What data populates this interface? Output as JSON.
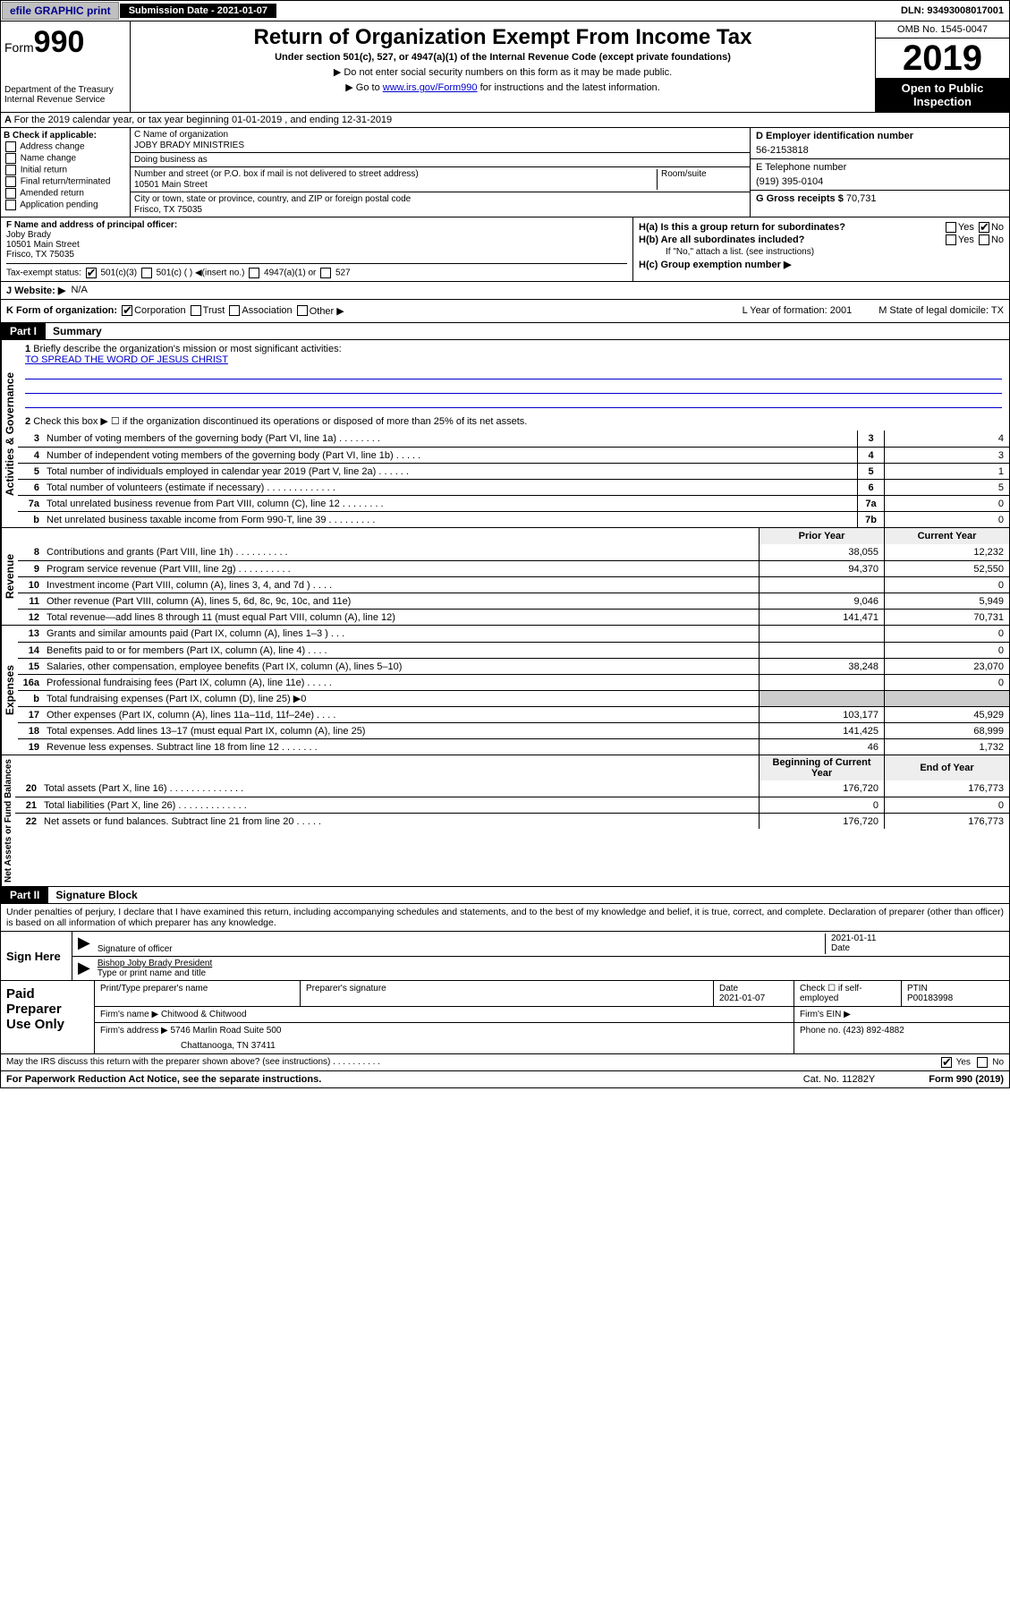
{
  "topbar": {
    "efile": "efile GRAPHIC print",
    "submission_label": "Submission Date - 2021-01-07",
    "dln": "DLN: 93493008017001"
  },
  "header": {
    "form_label": "Form",
    "form_number": "990",
    "dept": "Department of the Treasury\nInternal Revenue Service",
    "title": "Return of Organization Exempt From Income Tax",
    "subtitle": "Under section 501(c), 527, or 4947(a)(1) of the Internal Revenue Code (except private foundations)",
    "note1": "▶ Do not enter social security numbers on this form as it may be made public.",
    "note2_pre": "▶ Go to ",
    "note2_link": "www.irs.gov/Form990",
    "note2_post": " for instructions and the latest information.",
    "omb": "OMB No. 1545-0047",
    "year": "2019",
    "open": "Open to Public Inspection"
  },
  "line_a": "For the 2019 calendar year, or tax year beginning 01-01-2019    , and ending 12-31-2019",
  "box_b": {
    "label": "B Check if applicable:",
    "opts": [
      "Address change",
      "Name change",
      "Initial return",
      "Final return/terminated",
      "Amended return",
      "Application pending"
    ]
  },
  "box_c": {
    "name_lbl": "C Name of organization",
    "name": "JOBY BRADY MINISTRIES",
    "dba_lbl": "Doing business as",
    "addr_lbl": "Number and street (or P.O. box if mail is not delivered to street address)",
    "room_lbl": "Room/suite",
    "addr": "10501 Main Street",
    "city_lbl": "City or town, state or province, country, and ZIP or foreign postal code",
    "city": "Frisco, TX  75035"
  },
  "box_d": {
    "lbl": "D Employer identification number",
    "val": "56-2153818"
  },
  "box_e": {
    "lbl": "E Telephone number",
    "val": "(919) 395-0104"
  },
  "box_g": {
    "lbl": "G Gross receipts $",
    "val": "70,731"
  },
  "box_f": {
    "lbl": "F  Name and address of principal officer:",
    "name": "Joby Brady",
    "addr1": "10501 Main Street",
    "addr2": "Frisco, TX  75035"
  },
  "box_h": {
    "a": "H(a)  Is this a group return for subordinates?",
    "b": "H(b)  Are all subordinates included?",
    "b_note": "If \"No,\" attach a list. (see instructions)",
    "c": "H(c)  Group exemption number ▶"
  },
  "tax_status": {
    "lbl": "Tax-exempt status:",
    "o1": "501(c)(3)",
    "o2": "501(c) (  ) ◀(insert no.)",
    "o3": "4947(a)(1) or",
    "o4": "527"
  },
  "website": {
    "lbl": "J    Website: ▶",
    "val": "N/A"
  },
  "line_k": {
    "lbl": "K Form of organization:",
    "o1": "Corporation",
    "o2": "Trust",
    "o3": "Association",
    "o4": "Other ▶",
    "l": "L Year of formation: 2001",
    "m": "M State of legal domicile: TX"
  },
  "part1": {
    "hdr": "Part I",
    "title": "Summary",
    "q1": "Briefly describe the organization's mission or most significant activities:",
    "mission": "TO SPREAD THE WORD OF JESUS CHRIST",
    "q2": "Check this box ▶ ☐  if the organization discontinued its operations or disposed of more than 25% of its net assets.",
    "vlab1": "Activities & Governance",
    "vlab2": "Revenue",
    "vlab3": "Expenses",
    "vlab4": "Net Assets or Fund Balances",
    "col_prior": "Prior Year",
    "col_curr": "Current Year",
    "col_beg": "Beginning of Current Year",
    "col_end": "End of Year",
    "lines_gov": [
      {
        "n": "3",
        "d": "Number of voting members of the governing body (Part VI, line 1a)   .   .   .   .   .   .   .   .",
        "b": "3",
        "v": "4"
      },
      {
        "n": "4",
        "d": "Number of independent voting members of the governing body (Part VI, line 1b)   .   .   .   .   .",
        "b": "4",
        "v": "3"
      },
      {
        "n": "5",
        "d": "Total number of individuals employed in calendar year 2019 (Part V, line 2a)   .   .   .   .   .   .",
        "b": "5",
        "v": "1"
      },
      {
        "n": "6",
        "d": "Total number of volunteers (estimate if necessary)   .   .   .   .   .   .   .   .   .   .   .   .   .",
        "b": "6",
        "v": "5"
      },
      {
        "n": "7a",
        "d": "Total unrelated business revenue from Part VIII, column (C), line 12   .   .   .   .   .   .   .   .",
        "b": "7a",
        "v": "0"
      },
      {
        "n": "b",
        "d": "Net unrelated business taxable income from Form 990-T, line 39   .   .   .   .   .   .   .   .   .",
        "b": "7b",
        "v": "0"
      }
    ],
    "lines_rev": [
      {
        "n": "8",
        "d": "Contributions and grants (Part VIII, line 1h)   .   .   .   .   .   .   .   .   .   .",
        "p": "38,055",
        "c": "12,232"
      },
      {
        "n": "9",
        "d": "Program service revenue (Part VIII, line 2g)   .   .   .   .   .   .   .   .   .   .",
        "p": "94,370",
        "c": "52,550"
      },
      {
        "n": "10",
        "d": "Investment income (Part VIII, column (A), lines 3, 4, and 7d )   .   .   .   .",
        "p": "",
        "c": "0"
      },
      {
        "n": "11",
        "d": "Other revenue (Part VIII, column (A), lines 5, 6d, 8c, 9c, 10c, and 11e)",
        "p": "9,046",
        "c": "5,949"
      },
      {
        "n": "12",
        "d": "Total revenue—add lines 8 through 11 (must equal Part VIII, column (A), line 12)",
        "p": "141,471",
        "c": "70,731"
      }
    ],
    "lines_exp": [
      {
        "n": "13",
        "d": "Grants and similar amounts paid (Part IX, column (A), lines 1–3 )   .   .   .",
        "p": "",
        "c": "0"
      },
      {
        "n": "14",
        "d": "Benefits paid to or for members (Part IX, column (A), line 4)   .   .   .   .",
        "p": "",
        "c": "0"
      },
      {
        "n": "15",
        "d": "Salaries, other compensation, employee benefits (Part IX, column (A), lines 5–10)",
        "p": "38,248",
        "c": "23,070"
      },
      {
        "n": "16a",
        "d": "Professional fundraising fees (Part IX, column (A), line 11e)   .   .   .   .   .",
        "p": "",
        "c": "0"
      },
      {
        "n": "b",
        "d": "Total fundraising expenses (Part IX, column (D), line 25) ▶0",
        "p": "shade",
        "c": "shade"
      },
      {
        "n": "17",
        "d": "Other expenses (Part IX, column (A), lines 11a–11d, 11f–24e)   .   .   .   .",
        "p": "103,177",
        "c": "45,929"
      },
      {
        "n": "18",
        "d": "Total expenses. Add lines 13–17 (must equal Part IX, column (A), line 25)",
        "p": "141,425",
        "c": "68,999"
      },
      {
        "n": "19",
        "d": "Revenue less expenses. Subtract line 18 from line 12   .   .   .   .   .   .   .",
        "p": "46",
        "c": "1,732"
      }
    ],
    "lines_net": [
      {
        "n": "20",
        "d": "Total assets (Part X, line 16)   .   .   .   .   .   .   .   .   .   .   .   .   .   .",
        "p": "176,720",
        "c": "176,773"
      },
      {
        "n": "21",
        "d": "Total liabilities (Part X, line 26)   .   .   .   .   .   .   .   .   .   .   .   .   .",
        "p": "0",
        "c": "0"
      },
      {
        "n": "22",
        "d": "Net assets or fund balances. Subtract line 21 from line 20   .   .   .   .   .",
        "p": "176,720",
        "c": "176,773"
      }
    ]
  },
  "part2": {
    "hdr": "Part II",
    "title": "Signature Block",
    "decl": "Under penalties of perjury, I declare that I have examined this return, including accompanying schedules and statements, and to the best of my knowledge and belief, it is true, correct, and complete. Declaration of preparer (other than officer) is based on all information of which preparer has any knowledge.",
    "sign_here": "Sign Here",
    "sig_officer": "Signature of officer",
    "sig_date": "2021-01-11",
    "date_lbl": "Date",
    "officer_name": "Bishop Joby Brady  President",
    "name_lbl": "Type or print name and title",
    "paid": "Paid Preparer Use Only",
    "prep_name_lbl": "Print/Type preparer's name",
    "prep_sig_lbl": "Preparer's signature",
    "prep_date_lbl": "Date",
    "prep_date": "2021-01-07",
    "check_self": "Check ☐ if self-employed",
    "ptin_lbl": "PTIN",
    "ptin": "P00183998",
    "firm_name_lbl": "Firm's name    ▶",
    "firm_name": "Chitwood & Chitwood",
    "firm_ein_lbl": "Firm's EIN ▶",
    "firm_addr_lbl": "Firm's address ▶",
    "firm_addr1": "5746 Marlin Road Suite 500",
    "firm_addr2": "Chattanooga, TN  37411",
    "phone_lbl": "Phone no.",
    "phone": "(423) 892-4882",
    "discuss": "May the IRS discuss this return with the preparer shown above? (see instructions)   .   .   .   .   .   .   .   .   .   ."
  },
  "footer": {
    "pra": "For Paperwork Reduction Act Notice, see the separate instructions.",
    "cat": "Cat. No. 11282Y",
    "form": "Form 990 (2019)"
  }
}
